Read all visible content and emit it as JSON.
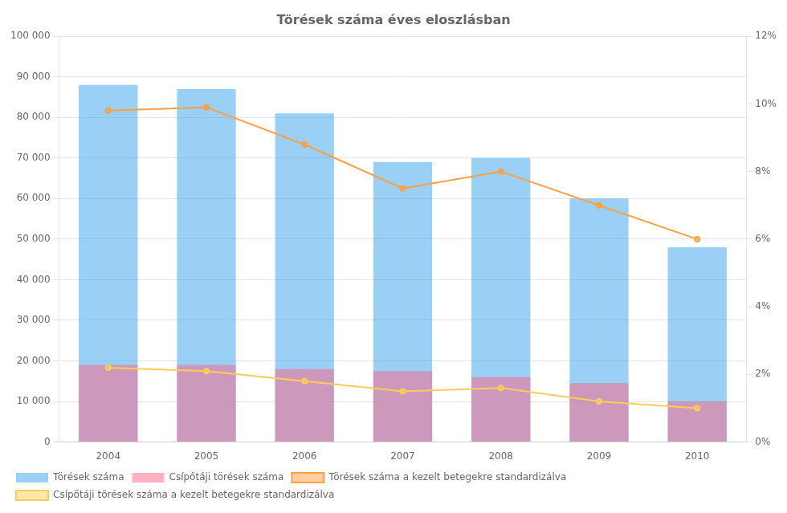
{
  "chart_data": {
    "type": "bar",
    "title": "Törések száma éves eloszlásban",
    "categories": [
      "2004",
      "2005",
      "2006",
      "2007",
      "2008",
      "2009",
      "2010"
    ],
    "series": [
      {
        "name": "Törések száma",
        "type": "bar",
        "values": [
          88000,
          87000,
          81000,
          69000,
          70000,
          60000,
          48000
        ]
      },
      {
        "name": "Csípőtáji törések száma",
        "type": "bar",
        "values": [
          19000,
          19000,
          18000,
          17500,
          16000,
          14500,
          10000
        ]
      },
      {
        "name": "Törések száma a kezelt betegekre standardizálva",
        "type": "line",
        "axis": "y2",
        "values": [
          9.8,
          9.9,
          8.8,
          7.5,
          8.0,
          7.0,
          6.0
        ]
      },
      {
        "name": "Csípőtáji törések száma a kezelt betegekre standardizálva",
        "type": "line",
        "axis": "y2",
        "values": [
          2.2,
          2.1,
          1.8,
          1.5,
          1.6,
          1.2,
          1.0
        ]
      }
    ],
    "ylim": [
      0,
      100000
    ],
    "yticks": [
      0,
      {
        "value": 10000,
        "label": "10 000"
      },
      {
        "value": 20000,
        "label": "20 000"
      },
      {
        "value": 30000,
        "label": "30 000"
      },
      {
        "value": 40000,
        "label": "40 000"
      },
      {
        "value": 50000,
        "label": "50 000"
      },
      {
        "value": 60000,
        "label": "60 000"
      },
      {
        "value": 70000,
        "label": "70 000"
      },
      {
        "value": 80000,
        "label": "80 000"
      },
      {
        "value": 90000,
        "label": "90 000"
      },
      {
        "value": 100000,
        "label": "100 000"
      }
    ],
    "y2lim": [
      0,
      12
    ],
    "y2ticks": [
      {
        "value": 0,
        "label": "0%"
      },
      {
        "value": 2,
        "label": "2%"
      },
      {
        "value": 4,
        "label": "4%"
      },
      {
        "value": 6,
        "label": "6%"
      },
      {
        "value": 8,
        "label": "8%"
      },
      {
        "value": 10,
        "label": "10%"
      },
      {
        "value": 12,
        "label": "12%"
      }
    ],
    "grid": true,
    "legend": "lower left"
  }
}
